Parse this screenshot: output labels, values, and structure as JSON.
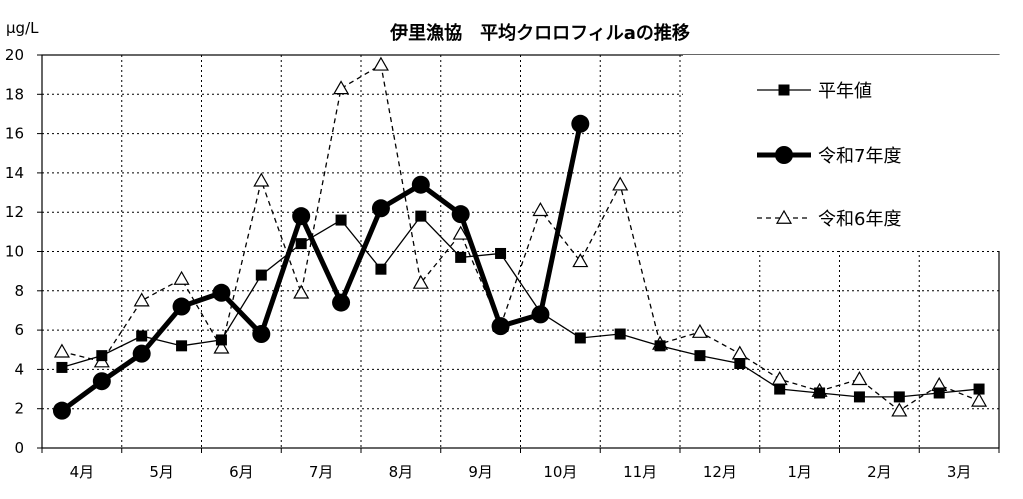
{
  "chart_data": {
    "type": "line",
    "title": "伊里漁協　平均クロロフィルaの推移",
    "ylabel": "μg/L",
    "xlabel": "",
    "ylim": [
      0,
      20
    ],
    "yticks": [
      0,
      2,
      4,
      6,
      8,
      10,
      12,
      14,
      16,
      18,
      20
    ],
    "x_range": [
      0,
      24
    ],
    "month_labels": [
      "4月",
      "5月",
      "6月",
      "7月",
      "8月",
      "9月",
      "10月",
      "11月",
      "12月",
      "1月",
      "2月",
      "3月"
    ],
    "grid": true,
    "legend_position": "right",
    "series": [
      {
        "name": "平年値",
        "style": "thin-solid-square",
        "color": "#000000",
        "x": [
          0.5,
          1.5,
          2.5,
          3.5,
          4.5,
          5.5,
          6.5,
          7.5,
          8.5,
          9.5,
          10.5,
          11.5,
          12.5,
          13.5,
          14.5,
          15.5,
          16.5,
          17.5,
          18.5,
          19.5,
          20.5,
          21.5,
          22.5,
          23.5
        ],
        "values": [
          4.1,
          4.7,
          5.7,
          5.2,
          5.5,
          8.8,
          10.4,
          11.6,
          9.1,
          11.8,
          9.7,
          9.9,
          6.9,
          5.6,
          5.8,
          5.2,
          4.7,
          4.3,
          3.0,
          2.8,
          2.6,
          2.6,
          2.8,
          3.0
        ]
      },
      {
        "name": "令和7年度",
        "style": "thick-solid-circle",
        "color": "#000000",
        "x": [
          0.5,
          1.5,
          2.5,
          3.5,
          4.5,
          5.5,
          6.5,
          7.5,
          8.5,
          9.5,
          10.5,
          11.5,
          12.5,
          13.5
        ],
        "values": [
          1.9,
          3.4,
          4.8,
          7.2,
          7.9,
          5.8,
          11.8,
          7.4,
          12.2,
          13.4,
          11.9,
          6.2,
          6.8,
          16.5
        ]
      },
      {
        "name": "令和6年度",
        "style": "dashed-open-triangle",
        "color": "#000000",
        "x": [
          0.5,
          1.5,
          2.5,
          3.5,
          4.5,
          5.5,
          6.5,
          7.5,
          8.5,
          9.5,
          10.5,
          11.5,
          12.5,
          13.5,
          14.5,
          15.5,
          16.5,
          17.5,
          18.5,
          19.5,
          20.5,
          21.5,
          22.5,
          23.5
        ],
        "values": [
          4.9,
          4.4,
          7.5,
          8.6,
          5.1,
          13.6,
          7.9,
          18.3,
          19.5,
          8.4,
          10.9,
          6.2,
          12.1,
          9.5,
          13.4,
          5.3,
          5.9,
          4.8,
          3.5,
          2.9,
          3.5,
          1.9,
          3.2,
          2.4
        ]
      }
    ]
  }
}
